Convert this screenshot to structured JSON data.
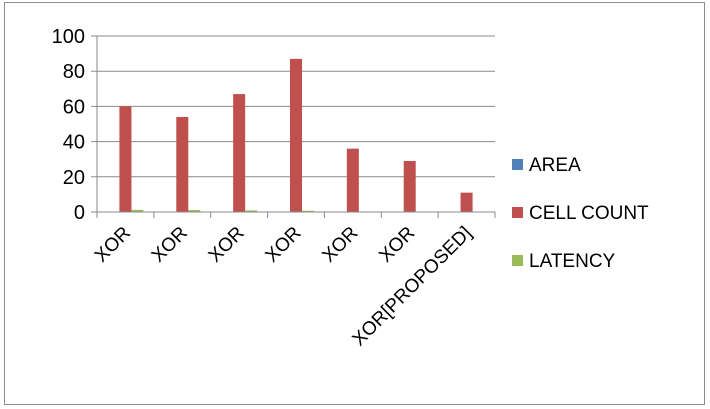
{
  "chart_data": {
    "type": "bar",
    "categories": [
      "XOR",
      "XOR",
      "XOR",
      "XOR",
      "XOR",
      "XOR",
      "XOR[PROPOSED]"
    ],
    "series": [
      {
        "name": "AREA",
        "color": "#4f81bd",
        "values": [
          0,
          0,
          0,
          0,
          0,
          0,
          0
        ]
      },
      {
        "name": "CELL COUNT",
        "color": "#c0504d",
        "values": [
          60,
          54,
          67,
          87,
          36,
          29,
          11
        ]
      },
      {
        "name": "LATENCY",
        "color": "#9bbb59",
        "values": [
          1.2,
          1.1,
          0.9,
          0.7,
          0.3,
          0.2,
          0.1
        ]
      }
    ],
    "title": "",
    "xlabel": "",
    "ylabel": "",
    "ylim": [
      0,
      100
    ],
    "yticks": [
      "0",
      "20",
      "40",
      "60",
      "80",
      "100"
    ],
    "grid": true,
    "legend_position": "right"
  }
}
